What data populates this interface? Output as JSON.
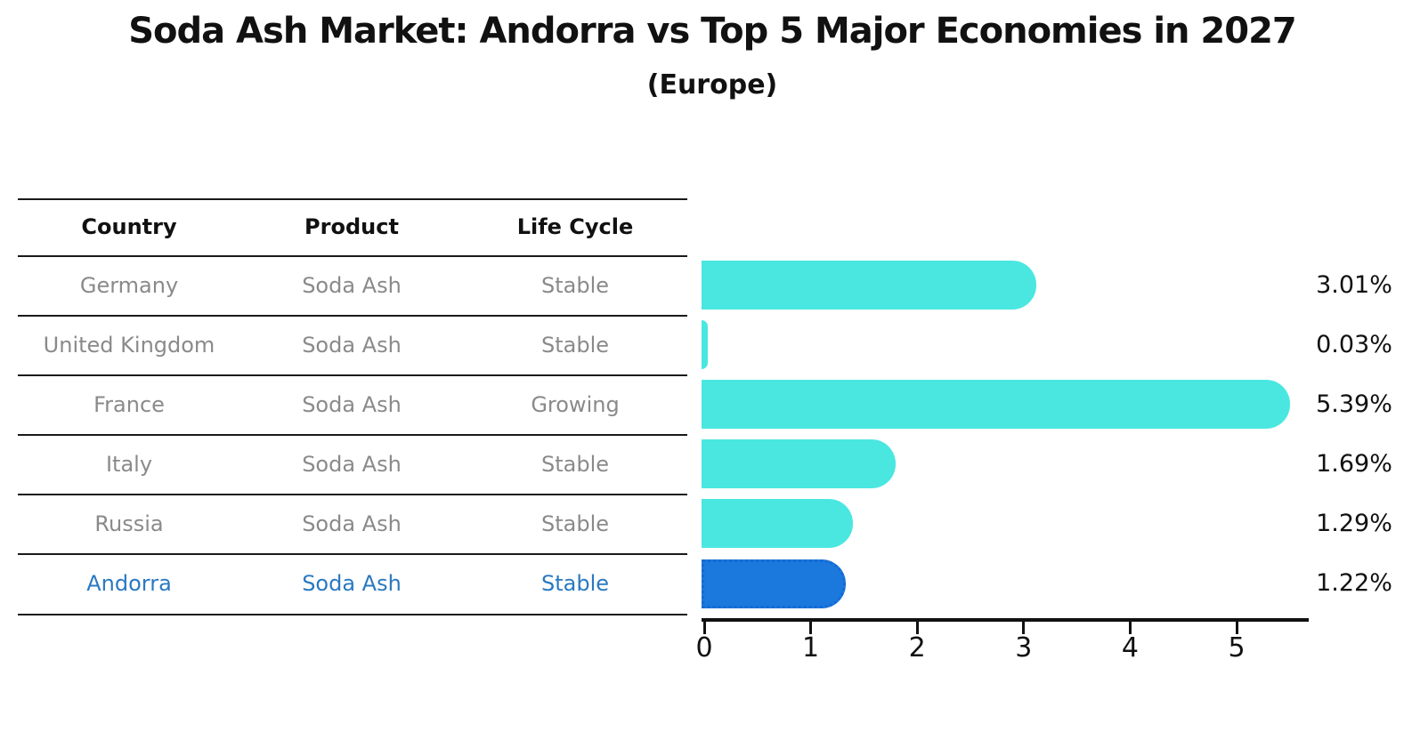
{
  "header": {
    "title": "Soda Ash Market: Andorra vs Top 5 Major Economies in 2027",
    "subtitle": "(Europe)"
  },
  "table": {
    "headers": [
      "Country",
      "Product",
      "Life Cycle"
    ],
    "rows": [
      {
        "country": "Germany",
        "product": "Soda Ash",
        "life_cycle": "Stable",
        "highlighted": false
      },
      {
        "country": "United Kingdom",
        "product": "Soda Ash",
        "life_cycle": "Stable",
        "highlighted": false
      },
      {
        "country": "France",
        "product": "Soda Ash",
        "life_cycle": "Growing",
        "highlighted": false
      },
      {
        "country": "Italy",
        "product": "Soda Ash",
        "life_cycle": "Stable",
        "highlighted": false
      },
      {
        "country": "Russia",
        "product": "Soda Ash",
        "life_cycle": "Stable",
        "highlighted": false
      },
      {
        "country": "Andorra",
        "product": "Soda Ash",
        "life_cycle": "Stable",
        "highlighted": true
      }
    ]
  },
  "chart_data": {
    "type": "bar",
    "orientation": "horizontal",
    "title": "Soda Ash Market: Andorra vs Top 5 Major Economies in 2027 (Europe)",
    "categories": [
      "Germany",
      "United Kingdom",
      "France",
      "Italy",
      "Russia",
      "Andorra"
    ],
    "values": [
      3.01,
      0.03,
      5.39,
      1.69,
      1.29,
      1.22
    ],
    "value_labels": [
      "3.01%",
      "0.03%",
      "5.39%",
      "1.69%",
      "1.29%",
      "1.22%"
    ],
    "highlight_index": 5,
    "x_ticks": [
      "0",
      "1",
      "2",
      "3",
      "4",
      "5"
    ],
    "xlim": [
      0,
      5.7
    ],
    "grid": false,
    "legend": "none",
    "xlabel": "",
    "ylabel": ""
  },
  "colors": {
    "bar": "#4AE7E1",
    "highlight_bar": "#1B78DC",
    "highlight_border": "#1668D6",
    "highlight_text": "#2979C1",
    "row_text": "#8a8a8a",
    "axis": "#111111"
  }
}
